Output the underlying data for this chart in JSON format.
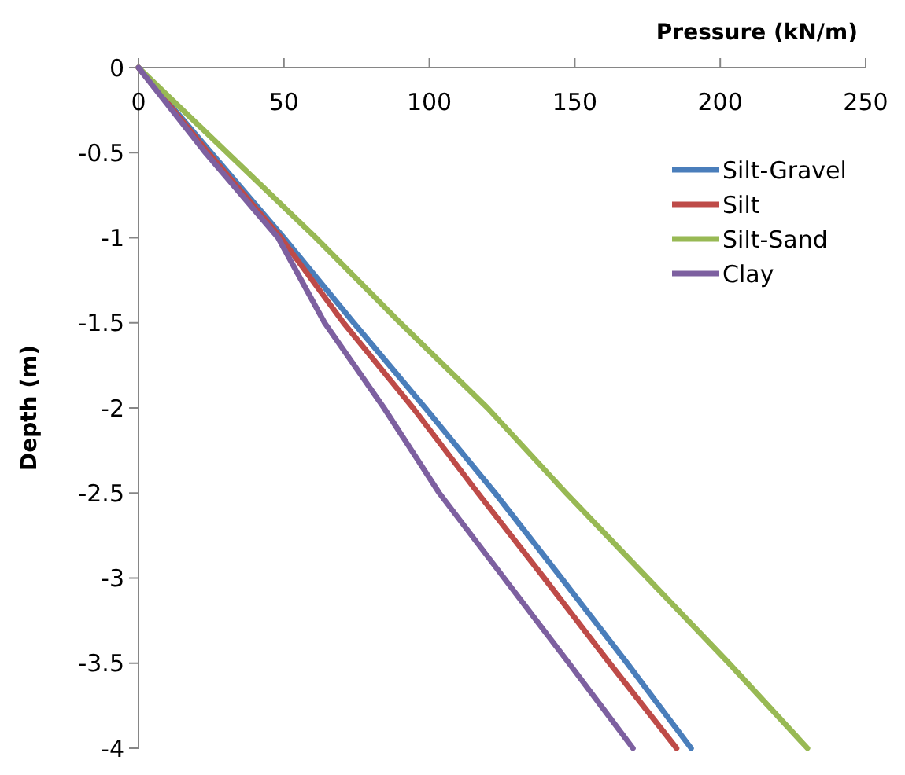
{
  "chart_data": {
    "type": "line",
    "xlabel": "Pressure (kN/m)",
    "ylabel": "Depth (m)",
    "xlim": [
      0,
      250
    ],
    "xticks": [
      0,
      50,
      100,
      150,
      200,
      250
    ],
    "ylim": [
      -4,
      0
    ],
    "yticks": [
      -4,
      -3.5,
      -3,
      -2.5,
      -2,
      -1.5,
      -1,
      -0.5,
      0
    ],
    "grid": false,
    "legend": "right",
    "marker": "none",
    "line_style": "solid",
    "series": [
      {
        "name": "Silt-Gravel",
        "color": "#4a7ebb",
        "x": [
          0,
          25,
          50,
          74,
          98.6,
          122.6,
          145.4,
          168,
          190
        ],
        "values": [
          0,
          -0.5,
          -1,
          -1.5,
          -2,
          -2.5,
          -3,
          -3.5,
          -4
        ]
      },
      {
        "name": "Silt",
        "color": "#be4b48",
        "x": [
          0,
          24,
          49,
          70.5,
          94.4,
          116.7,
          139.5,
          162,
          185
        ],
        "values": [
          0,
          -0.5,
          -1,
          -1.5,
          -2,
          -2.5,
          -3,
          -3.5,
          -4
        ]
      },
      {
        "name": "Silt-Sand",
        "color": "#98b954",
        "x": [
          0,
          30.5,
          61,
          90,
          120,
          147,
          175,
          203,
          230
        ],
        "values": [
          0,
          -0.5,
          -1,
          -1.5,
          -2,
          -2.5,
          -3,
          -3.5,
          -4
        ]
      },
      {
        "name": "Clay",
        "color": "#7d60a0",
        "x": [
          0,
          23,
          48,
          64,
          84.4,
          103.4,
          125.7,
          148,
          170
        ],
        "values": [
          0,
          -0.5,
          -1,
          -1.5,
          -2,
          -2.5,
          -3,
          -3.5,
          -4
        ]
      }
    ]
  }
}
